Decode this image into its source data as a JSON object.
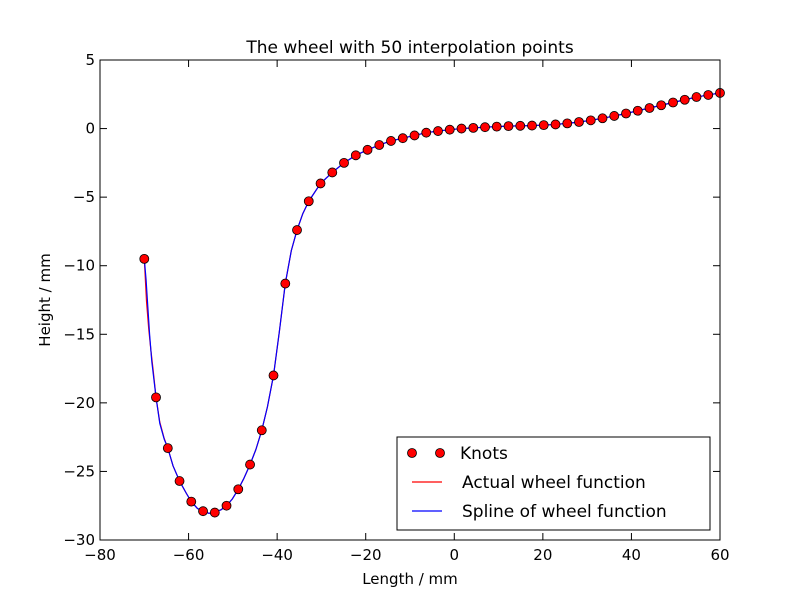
{
  "chart_data": {
    "type": "line",
    "title": "The wheel with 50 interpolation points",
    "xlabel": "Length / mm",
    "ylabel": "Height / mm",
    "xlim": [
      -80,
      60
    ],
    "ylim": [
      -30,
      5
    ],
    "xticks": [
      -80,
      -60,
      -40,
      -20,
      0,
      20,
      40,
      60
    ],
    "xtick_labels": [
      "−80",
      "−60",
      "−40",
      "−20",
      "0",
      "20",
      "40",
      "60"
    ],
    "yticks": [
      5,
      0,
      -5,
      -10,
      -15,
      -20,
      -25,
      -30
    ],
    "ytick_labels": [
      "5",
      "0",
      "−5",
      "−10",
      "−15",
      "−20",
      "−25",
      "−30"
    ],
    "grid": false,
    "legend_position": "lower-right",
    "series": [
      {
        "name": "Knots",
        "kind": "markers",
        "color": "#ff0000",
        "x": [
          -70,
          -67.35,
          -64.69,
          -62.04,
          -59.39,
          -56.73,
          -54.08,
          -51.43,
          -48.78,
          -46.12,
          -43.47,
          -40.82,
          -38.16,
          -35.51,
          -32.86,
          -30.2,
          -27.55,
          -24.9,
          -22.24,
          -19.59,
          -16.94,
          -14.29,
          -11.63,
          -8.98,
          -6.33,
          -3.67,
          -1.02,
          1.63,
          4.29,
          6.94,
          9.59,
          12.24,
          14.9,
          17.55,
          20.2,
          22.86,
          25.51,
          28.16,
          30.82,
          33.47,
          36.12,
          38.78,
          41.43,
          44.08,
          46.73,
          49.39,
          52.04,
          54.69,
          57.35,
          60
        ],
        "y": [
          -9.5,
          -19.6,
          -23.3,
          -25.7,
          -27.2,
          -27.9,
          -28.0,
          -27.5,
          -26.3,
          -24.5,
          -22.0,
          -18.0,
          -11.3,
          -7.4,
          -5.3,
          -4.0,
          -3.2,
          -2.5,
          -1.95,
          -1.55,
          -1.2,
          -0.9,
          -0.7,
          -0.5,
          -0.3,
          -0.18,
          -0.08,
          0.0,
          0.05,
          0.1,
          0.14,
          0.18,
          0.2,
          0.22,
          0.25,
          0.3,
          0.38,
          0.48,
          0.6,
          0.75,
          0.92,
          1.1,
          1.3,
          1.5,
          1.7,
          1.9,
          2.1,
          2.3,
          2.45,
          2.6
        ]
      },
      {
        "name": "Actual wheel function",
        "kind": "line",
        "color": "#ff0000",
        "x": [
          -70,
          -69.5,
          -69,
          -68.5,
          -68,
          -67.35,
          -66.5,
          -65.5,
          -64.69,
          -63.5,
          -62.04,
          -60.5,
          -59.39,
          -58,
          -56.73,
          -55.4,
          -54.08,
          -52.7,
          -51.43,
          -50.1,
          -48.78,
          -47.5,
          -46.12,
          -44.8,
          -43.47,
          -42.2,
          -40.82,
          -39.5,
          -38.16,
          -36.8,
          -35.51,
          -34.2,
          -32.86,
          -30.2,
          -27.55,
          -24.9,
          -22.24,
          -19.59,
          -16.94,
          -14.29,
          -11.63,
          -8.98,
          -6.33,
          -3.67,
          -1.02,
          1.63,
          4.29,
          6.94,
          9.59,
          12.24,
          14.9,
          17.55,
          20.2,
          22.86,
          25.51,
          28.16,
          30.82,
          33.47,
          36.12,
          38.78,
          41.43,
          44.08,
          46.73,
          49.39,
          52.04,
          54.69,
          57.35,
          60
        ],
        "y": [
          -9.5,
          -12.6,
          -14.6,
          -16.2,
          -17.6,
          -19.6,
          -21.4,
          -22.6,
          -23.3,
          -24.6,
          -25.7,
          -26.6,
          -27.2,
          -27.7,
          -27.9,
          -28.05,
          -28.0,
          -27.8,
          -27.5,
          -27.0,
          -26.3,
          -25.5,
          -24.5,
          -23.4,
          -22.0,
          -20.3,
          -18.0,
          -14.8,
          -11.3,
          -8.9,
          -7.4,
          -6.2,
          -5.3,
          -4.0,
          -3.2,
          -2.5,
          -1.95,
          -1.55,
          -1.2,
          -0.9,
          -0.7,
          -0.5,
          -0.3,
          -0.18,
          -0.08,
          0.0,
          0.05,
          0.1,
          0.14,
          0.18,
          0.2,
          0.22,
          0.25,
          0.3,
          0.38,
          0.48,
          0.6,
          0.75,
          0.92,
          1.1,
          1.3,
          1.5,
          1.7,
          1.9,
          2.1,
          2.3,
          2.45,
          2.6
        ]
      },
      {
        "name": "Spline of wheel function",
        "kind": "line",
        "color": "#0000ff",
        "x": [
          -70,
          -69.6,
          -69.2,
          -68.8,
          -68.3,
          -67.35,
          -66.5,
          -65.5,
          -64.69,
          -63.5,
          -62.04,
          -60.5,
          -59.39,
          -58,
          -56.73,
          -55.4,
          -54.08,
          -52.7,
          -51.43,
          -50.1,
          -48.78,
          -47.5,
          -46.12,
          -44.8,
          -43.47,
          -42.2,
          -40.82,
          -39.5,
          -38.16,
          -36.8,
          -35.51,
          -34.2,
          -32.86,
          -30.2,
          -27.55,
          -24.9,
          -22.24,
          -19.59,
          -16.94,
          -14.29,
          -11.63,
          -8.98,
          -6.33,
          -3.67,
          -1.02,
          1.63,
          4.29,
          6.94,
          9.59,
          12.24,
          14.9,
          17.55,
          20.2,
          22.86,
          25.51,
          28.16,
          30.82,
          33.47,
          36.12,
          38.78,
          41.43,
          44.08,
          46.73,
          49.39,
          52.04,
          54.69,
          57.35,
          60
        ],
        "y": [
          -9.5,
          -11.0,
          -13.0,
          -15.0,
          -17.0,
          -19.6,
          -21.5,
          -22.65,
          -23.3,
          -24.6,
          -25.7,
          -26.6,
          -27.2,
          -27.7,
          -27.9,
          -28.05,
          -28.0,
          -27.8,
          -27.5,
          -27.0,
          -26.3,
          -25.5,
          -24.5,
          -23.4,
          -22.0,
          -20.3,
          -18.0,
          -14.8,
          -11.3,
          -8.9,
          -7.4,
          -6.2,
          -5.3,
          -4.0,
          -3.2,
          -2.5,
          -1.95,
          -1.55,
          -1.2,
          -0.9,
          -0.7,
          -0.5,
          -0.3,
          -0.18,
          -0.08,
          0.0,
          0.05,
          0.1,
          0.14,
          0.18,
          0.2,
          0.22,
          0.25,
          0.3,
          0.38,
          0.48,
          0.6,
          0.75,
          0.92,
          1.1,
          1.3,
          1.5,
          1.7,
          1.9,
          2.1,
          2.3,
          2.45,
          2.6
        ]
      }
    ]
  }
}
